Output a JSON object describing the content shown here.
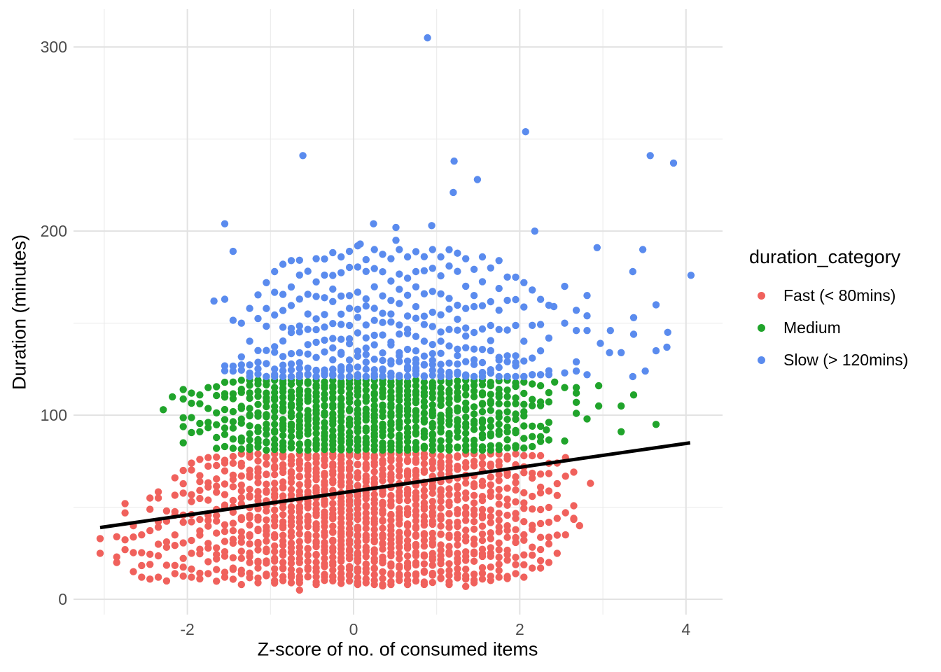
{
  "chart_data": {
    "type": "scatter",
    "title": "",
    "xlabel": "Z-score of no. of consumed items",
    "ylabel": "Duration (minutes)",
    "xlim": [
      -3.37,
      4.44
    ],
    "ylim": [
      -8.3,
      320.6
    ],
    "x_ticks": [
      -2,
      0,
      2,
      4
    ],
    "x_tick_labels": [
      "-2",
      "0",
      "2",
      "4"
    ],
    "x_minor_ticks": [
      -3,
      -1,
      1,
      3
    ],
    "y_ticks": [
      0,
      100,
      200,
      300
    ],
    "y_tick_labels": [
      "0",
      "100",
      "200",
      "300"
    ],
    "y_minor_ticks": [
      50,
      150,
      250
    ],
    "grid": true,
    "grid_major_color": "#E2E2E2",
    "grid_minor_color": "#ECECEC",
    "background_color": "#FFFFFF",
    "legend": {
      "title": "duration_category",
      "position": "right",
      "entries": [
        {
          "label": "Fast (< 80mins)",
          "color": "#F0615C"
        },
        {
          "label": "Medium",
          "color": "#20A42B"
        },
        {
          "label": "Slow (> 120mins)",
          "color": "#5A8BEE"
        }
      ]
    },
    "regression_line": {
      "color": "#000000",
      "width": 5,
      "x": [
        -3.05,
        4.05
      ],
      "y": [
        39,
        85
      ]
    },
    "series": [
      {
        "name": "Fast (< 80mins)",
        "color": "#F0615C",
        "bias": 1,
        "columns": [
          [
            -2.75,
            27,
            52,
            4
          ],
          [
            -2.65,
            15,
            40,
            4
          ],
          [
            -2.55,
            12,
            35,
            4
          ],
          [
            -2.45,
            10,
            55,
            6
          ],
          [
            -2.35,
            12,
            62,
            7
          ],
          [
            -2.25,
            10,
            48,
            6
          ],
          [
            -2.15,
            14,
            66,
            8
          ],
          [
            -2.05,
            10,
            70,
            9
          ],
          [
            -1.95,
            12,
            74,
            10
          ],
          [
            -1.85,
            10,
            76,
            12
          ],
          [
            -1.75,
            14,
            77,
            12
          ],
          [
            -1.65,
            9,
            78,
            14
          ],
          [
            -1.55,
            12,
            78,
            14
          ],
          [
            -1.45,
            10,
            79,
            16
          ],
          [
            -1.35,
            8,
            79,
            18
          ],
          [
            -1.25,
            11,
            79,
            20
          ],
          [
            -1.15,
            9,
            79,
            22
          ],
          [
            -1.05,
            12,
            79,
            22
          ],
          [
            -0.95,
            8,
            79,
            24
          ],
          [
            -0.85,
            10,
            79,
            26
          ],
          [
            -0.75,
            9,
            79,
            26
          ],
          [
            -0.65,
            5,
            79,
            28
          ],
          [
            -0.55,
            11,
            79,
            28
          ],
          [
            -0.45,
            8,
            79,
            30
          ],
          [
            -0.35,
            10,
            79,
            30
          ],
          [
            -0.25,
            9,
            79,
            30
          ],
          [
            -0.15,
            8,
            79,
            32
          ],
          [
            -0.05,
            10,
            79,
            32
          ],
          [
            0.05,
            8,
            79,
            32
          ],
          [
            0.15,
            9,
            79,
            32
          ],
          [
            0.25,
            8,
            79,
            30
          ],
          [
            0.35,
            6,
            79,
            30
          ],
          [
            0.45,
            8,
            79,
            30
          ],
          [
            0.55,
            9,
            79,
            28
          ],
          [
            0.65,
            8,
            79,
            28
          ],
          [
            0.75,
            10,
            79,
            28
          ],
          [
            0.85,
            8,
            79,
            26
          ],
          [
            0.95,
            9,
            79,
            26
          ],
          [
            1.05,
            10,
            79,
            24
          ],
          [
            1.15,
            8,
            79,
            24
          ],
          [
            1.25,
            10,
            79,
            22
          ],
          [
            1.35,
            7,
            79,
            22
          ],
          [
            1.45,
            8,
            79,
            20
          ],
          [
            1.55,
            11,
            79,
            20
          ],
          [
            1.65,
            9,
            79,
            18
          ],
          [
            1.75,
            12,
            79,
            18
          ],
          [
            1.85,
            10,
            79,
            16
          ],
          [
            1.95,
            14,
            79,
            14
          ],
          [
            2.05,
            12,
            78,
            12
          ],
          [
            2.15,
            16,
            78,
            10
          ],
          [
            2.25,
            14,
            78,
            10
          ],
          [
            2.35,
            20,
            77,
            8
          ],
          [
            2.45,
            25,
            77,
            6
          ],
          [
            2.55,
            35,
            77,
            4
          ],
          [
            2.65,
            40,
            72,
            3
          ]
        ],
        "points": [
          [
            -3.05,
            33
          ],
          [
            -3.05,
            25
          ],
          [
            -2.85,
            34
          ],
          [
            -2.85,
            23
          ],
          [
            -2.85,
            20
          ],
          [
            2.65,
            44
          ],
          [
            2.72,
            40
          ],
          [
            2.85,
            63
          ]
        ]
      },
      {
        "name": "Medium",
        "color": "#20A42B",
        "bias": 1,
        "columns": [
          [
            -2.05,
            85,
            114,
            5
          ],
          [
            -1.95,
            88,
            112,
            4
          ],
          [
            -1.85,
            91,
            111,
            4
          ],
          [
            -1.75,
            90,
            115,
            4
          ],
          [
            -1.65,
            82,
            117,
            6
          ],
          [
            -1.55,
            83,
            118,
            8
          ],
          [
            -1.45,
            82,
            118,
            8
          ],
          [
            -1.35,
            81,
            119,
            10
          ],
          [
            -1.25,
            81,
            119,
            12
          ],
          [
            -1.15,
            81,
            119,
            12
          ],
          [
            -1.05,
            81,
            119,
            14
          ],
          [
            -0.95,
            81,
            119,
            14
          ],
          [
            -0.85,
            81,
            119,
            16
          ],
          [
            -0.75,
            81,
            119,
            16
          ],
          [
            -0.65,
            81,
            119,
            18
          ],
          [
            -0.55,
            81,
            119,
            16
          ],
          [
            -0.45,
            81,
            119,
            18
          ],
          [
            -0.35,
            81,
            119,
            16
          ],
          [
            -0.25,
            81,
            119,
            18
          ],
          [
            -0.15,
            81,
            119,
            18
          ],
          [
            -0.05,
            81,
            119,
            16
          ],
          [
            0.05,
            81,
            119,
            18
          ],
          [
            0.15,
            81,
            119,
            16
          ],
          [
            0.25,
            81,
            119,
            18
          ],
          [
            0.35,
            81,
            119,
            16
          ],
          [
            0.45,
            81,
            119,
            16
          ],
          [
            0.55,
            81,
            119,
            18
          ],
          [
            0.65,
            81,
            119,
            16
          ],
          [
            0.75,
            81,
            119,
            16
          ],
          [
            0.85,
            81,
            119,
            14
          ],
          [
            0.95,
            81,
            119,
            16
          ],
          [
            1.05,
            81,
            119,
            14
          ],
          [
            1.15,
            81,
            119,
            16
          ],
          [
            1.25,
            81,
            119,
            14
          ],
          [
            1.35,
            81,
            119,
            14
          ],
          [
            1.45,
            81,
            119,
            12
          ],
          [
            1.55,
            81,
            119,
            14
          ],
          [
            1.65,
            81,
            119,
            12
          ],
          [
            1.75,
            81,
            119,
            12
          ],
          [
            1.85,
            81,
            119,
            10
          ],
          [
            1.95,
            81,
            119,
            10
          ],
          [
            2.05,
            82,
            118,
            8
          ],
          [
            2.15,
            83,
            117,
            6
          ],
          [
            2.25,
            84,
            116,
            6
          ],
          [
            2.35,
            85,
            115,
            4
          ]
        ],
        "points": [
          [
            -2.29,
            103
          ],
          [
            -2.18,
            110
          ],
          [
            2.32,
            92
          ],
          [
            2.42,
            118
          ],
          [
            2.54,
            115
          ],
          [
            2.54,
            86
          ],
          [
            2.68,
            115
          ],
          [
            2.68,
            112
          ],
          [
            2.68,
            107
          ],
          [
            2.68,
            101
          ],
          [
            2.81,
            98
          ],
          [
            2.95,
            116
          ],
          [
            2.95,
            105
          ],
          [
            3.22,
            105
          ],
          [
            3.22,
            91
          ],
          [
            3.37,
            111
          ],
          [
            3.64,
            95
          ]
        ]
      },
      {
        "name": "Slow (> 120mins)",
        "color": "#5A8BEE",
        "bias": 1.9,
        "columns": [
          [
            -1.55,
            122,
            163,
            3
          ],
          [
            -1.45,
            124,
            152,
            3
          ],
          [
            -1.35,
            122,
            150,
            4
          ],
          [
            -1.25,
            121,
            158,
            5
          ],
          [
            -1.15,
            121,
            166,
            6
          ],
          [
            -1.05,
            121,
            172,
            7
          ],
          [
            -0.95,
            121,
            178,
            8
          ],
          [
            -0.85,
            121,
            182,
            9
          ],
          [
            -0.75,
            121,
            184,
            10
          ],
          [
            -0.65,
            121,
            186,
            10
          ],
          [
            -0.55,
            121,
            180,
            10
          ],
          [
            -0.45,
            121,
            185,
            11
          ],
          [
            -0.35,
            121,
            188,
            11
          ],
          [
            -0.25,
            121,
            190,
            12
          ],
          [
            -0.15,
            121,
            186,
            12
          ],
          [
            -0.05,
            121,
            189,
            12
          ],
          [
            0.05,
            121,
            192,
            12
          ],
          [
            0.15,
            121,
            186,
            12
          ],
          [
            0.25,
            121,
            190,
            12
          ],
          [
            0.35,
            121,
            188,
            12
          ],
          [
            0.45,
            121,
            185,
            12
          ],
          [
            0.55,
            121,
            190,
            12
          ],
          [
            0.65,
            121,
            186,
            12
          ],
          [
            0.75,
            121,
            192,
            12
          ],
          [
            0.85,
            121,
            188,
            11
          ],
          [
            0.95,
            121,
            190,
            11
          ],
          [
            1.05,
            121,
            186,
            11
          ],
          [
            1.15,
            121,
            192,
            10
          ],
          [
            1.25,
            121,
            188,
            10
          ],
          [
            1.35,
            121,
            185,
            10
          ],
          [
            1.45,
            121,
            182,
            9
          ],
          [
            1.55,
            121,
            186,
            9
          ],
          [
            1.65,
            121,
            180,
            8
          ],
          [
            1.75,
            121,
            184,
            8
          ],
          [
            1.85,
            121,
            178,
            7
          ],
          [
            1.95,
            121,
            175,
            7
          ],
          [
            2.05,
            121,
            172,
            6
          ],
          [
            2.15,
            122,
            168,
            5
          ],
          [
            2.25,
            122,
            164,
            5
          ],
          [
            2.35,
            122,
            160,
            4
          ]
        ],
        "points": [
          [
            0.89,
            305
          ],
          [
            2.07,
            254
          ],
          [
            -0.61,
            241
          ],
          [
            1.21,
            238
          ],
          [
            3.57,
            241
          ],
          [
            3.85,
            237
          ],
          [
            1.49,
            228
          ],
          [
            1.2,
            221
          ],
          [
            -1.55,
            204
          ],
          [
            0.24,
            204
          ],
          [
            0.51,
            202
          ],
          [
            0.94,
            203
          ],
          [
            2.18,
            200
          ],
          [
            0.51,
            195
          ],
          [
            0.08,
            193
          ],
          [
            -1.45,
            189
          ],
          [
            2.93,
            191
          ],
          [
            3.48,
            190
          ],
          [
            -1.68,
            162
          ],
          [
            2.41,
            159
          ],
          [
            2.54,
            170
          ],
          [
            2.54,
            150
          ],
          [
            2.54,
            123
          ],
          [
            2.68,
            157
          ],
          [
            2.68,
            146
          ],
          [
            2.68,
            129
          ],
          [
            2.68,
            124
          ],
          [
            2.81,
            165
          ],
          [
            2.81,
            154
          ],
          [
            2.81,
            146
          ],
          [
            2.81,
            122
          ],
          [
            2.97,
            139
          ],
          [
            3.08,
            134
          ],
          [
            3.09,
            146
          ],
          [
            3.22,
            134
          ],
          [
            3.36,
            178
          ],
          [
            3.36,
            121
          ],
          [
            3.37,
            153
          ],
          [
            3.37,
            144
          ],
          [
            3.51,
            124
          ],
          [
            3.64,
            160
          ],
          [
            3.64,
            135
          ],
          [
            3.77,
            137
          ],
          [
            3.78,
            145
          ],
          [
            4.06,
            176
          ]
        ]
      }
    ]
  }
}
